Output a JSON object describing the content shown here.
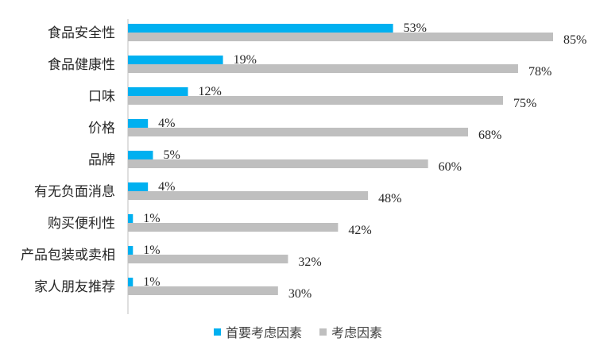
{
  "chart_data": {
    "type": "bar",
    "orientation": "horizontal",
    "categories": [
      "食品安全性",
      "食品健康性",
      "口味",
      "价格",
      "品牌",
      "有无负面消息",
      "购买便利性",
      "产品包装或卖相",
      "家人朋友推荐"
    ],
    "series": [
      {
        "name": "首要考虑因素",
        "values": [
          53,
          19,
          12,
          4,
          5,
          4,
          1,
          1,
          1
        ],
        "color": "#00B0F0"
      },
      {
        "name": "考虑因素",
        "values": [
          85,
          78,
          75,
          68,
          60,
          48,
          42,
          32,
          30
        ],
        "color": "#BFBFBF"
      }
    ],
    "value_suffix": "%",
    "xlim": [
      0,
      100
    ],
    "grid": false,
    "legend_position": "bottom"
  }
}
